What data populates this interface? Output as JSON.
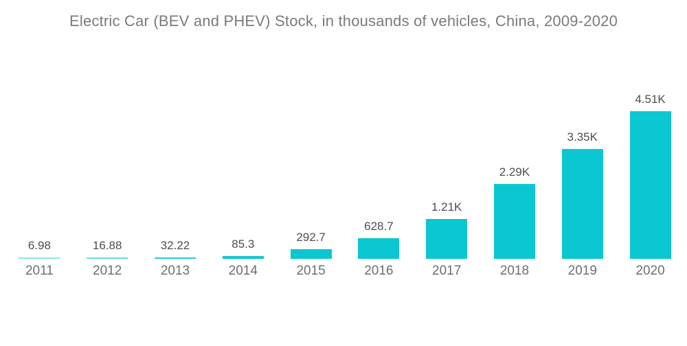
{
  "title": "Electric Car (BEV and PHEV) Stock, in thousands of vehicles, China, 2009-2020",
  "chart_data": {
    "type": "bar",
    "title": "Electric Car (BEV and PHEV) Stock, in thousands of vehicles, China, 2009-2020",
    "categories": [
      "2011",
      "2012",
      "2013",
      "2014",
      "2015",
      "2016",
      "2017",
      "2018",
      "2019",
      "2020"
    ],
    "values": [
      6.98,
      16.88,
      32.22,
      85.3,
      292.7,
      628.7,
      1210,
      2290,
      3350,
      4510
    ],
    "value_labels": [
      "6.98",
      "16.88",
      "32.22",
      "85.3",
      "292.7",
      "628.7",
      "1.21K",
      "2.29K",
      "3.35K",
      "4.51K"
    ],
    "xlabel": "",
    "ylabel": "",
    "ylim": [
      0,
      4510
    ],
    "grid": false,
    "legend": false,
    "bar_color": "#0bc7d2",
    "title_color": "#7a7a7a",
    "value_label_color": "#4d4d4d",
    "axis_label_color": "#6e6e6e",
    "background_color": "#ffffff"
  }
}
